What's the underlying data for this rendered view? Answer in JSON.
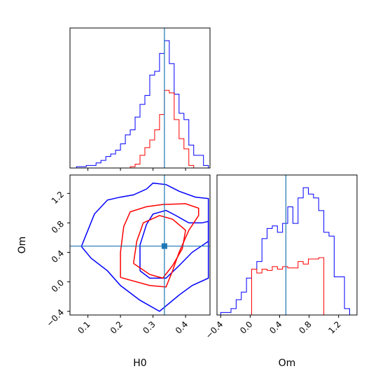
{
  "colors": {
    "series_blue": "#0000ff",
    "series_red": "#ff0000",
    "truth": "#1f77b4",
    "frame": "#000000"
  },
  "chart_data": [
    {
      "type": "histogram",
      "panel": "H0 marginal",
      "xlim": [
        0.045,
        0.475
      ],
      "ylim": [
        0,
        1.1
      ],
      "xlabel": "",
      "ylabel": "",
      "truth_x": 0.335,
      "bin_edges": [
        0.05,
        0.065,
        0.08,
        0.095,
        0.11,
        0.125,
        0.14,
        0.155,
        0.17,
        0.185,
        0.2,
        0.215,
        0.23,
        0.245,
        0.26,
        0.275,
        0.29,
        0.305,
        0.32,
        0.335,
        0.35,
        0.365,
        0.38,
        0.395,
        0.41,
        0.425,
        0.44,
        0.455,
        0.47
      ],
      "series": [
        {
          "color": "#0000ff",
          "values": [
            0.0,
            0.01,
            0.01,
            0.02,
            0.02,
            0.04,
            0.06,
            0.09,
            0.11,
            0.14,
            0.19,
            0.26,
            0.3,
            0.4,
            0.5,
            0.57,
            0.73,
            0.76,
            0.9,
            1.0,
            0.82,
            0.58,
            0.43,
            0.38,
            0.18,
            0.1,
            0.1,
            0.02
          ]
        },
        {
          "color": "#ff0000",
          "values": [
            0,
            0,
            0,
            0,
            0,
            0,
            0,
            0,
            0,
            0,
            0,
            0,
            0.01,
            0.03,
            0.1,
            0.16,
            0.22,
            0.3,
            0.42,
            0.61,
            0.59,
            0.38,
            0.23,
            0.15,
            0.02,
            0,
            0,
            0
          ]
        }
      ]
    },
    {
      "type": "contour",
      "panel": "H0 vs Om",
      "xlabel": "H0",
      "ylabel": "Om",
      "xlim": [
        0.045,
        0.475
      ],
      "ylim": [
        -0.45,
        1.45
      ],
      "xticks": [
        "0.1",
        "0.2",
        "0.3",
        "0.4"
      ],
      "yticks": [
        "−0.4",
        "0.0",
        "0.4",
        "0.8",
        "1.2"
      ],
      "truth": {
        "x": 0.335,
        "y": 0.485
      },
      "series": [
        {
          "color": "#0000ff",
          "contours": [
            [
              [
                0.08,
                0.48
              ],
              [
                0.1,
                0.7
              ],
              [
                0.12,
                0.92
              ],
              [
                0.16,
                1.11
              ],
              [
                0.2,
                1.15
              ],
              [
                0.24,
                1.18
              ],
              [
                0.28,
                1.26
              ],
              [
                0.3,
                1.34
              ],
              [
                0.34,
                1.32
              ],
              [
                0.38,
                1.23
              ],
              [
                0.43,
                1.15
              ],
              [
                0.47,
                1.13
              ],
              [
                0.47,
                0.05
              ],
              [
                0.42,
                -0.05
              ],
              [
                0.38,
                -0.18
              ],
              [
                0.32,
                -0.4
              ],
              [
                0.26,
                -0.25
              ],
              [
                0.2,
                -0.05
              ],
              [
                0.16,
                0.15
              ],
              [
                0.11,
                0.32
              ],
              [
                0.08,
                0.48
              ]
            ],
            [
              [
                0.26,
                0.15
              ],
              [
                0.26,
                0.5
              ],
              [
                0.28,
                0.78
              ],
              [
                0.3,
                0.92
              ],
              [
                0.34,
                0.97
              ],
              [
                0.37,
                0.9
              ],
              [
                0.41,
                0.8
              ],
              [
                0.45,
                0.8
              ],
              [
                0.47,
                0.82
              ],
              [
                0.47,
                0.55
              ],
              [
                0.42,
                0.4
              ],
              [
                0.38,
                0.22
              ],
              [
                0.34,
                0.05
              ],
              [
                0.29,
                0.05
              ],
              [
                0.26,
                0.15
              ]
            ]
          ]
        },
        {
          "color": "#ff0000",
          "contours": [
            [
              [
                0.2,
                0.06
              ],
              [
                0.2,
                0.4
              ],
              [
                0.21,
                0.75
              ],
              [
                0.23,
                0.95
              ],
              [
                0.28,
                1.02
              ],
              [
                0.33,
                1.05
              ],
              [
                0.4,
                1.06
              ],
              [
                0.44,
                1.0
              ],
              [
                0.44,
                0.9
              ],
              [
                0.41,
                0.7
              ],
              [
                0.38,
                0.4
              ],
              [
                0.36,
                0.15
              ],
              [
                0.34,
                -0.07
              ],
              [
                0.29,
                -0.05
              ],
              [
                0.2,
                0.06
              ]
            ],
            [
              [
                0.24,
                0.25
              ],
              [
                0.25,
                0.55
              ],
              [
                0.27,
                0.8
              ],
              [
                0.32,
                0.9
              ],
              [
                0.36,
                0.85
              ],
              [
                0.4,
                0.7
              ],
              [
                0.39,
                0.45
              ],
              [
                0.36,
                0.22
              ],
              [
                0.33,
                0.05
              ],
              [
                0.29,
                0.1
              ],
              [
                0.24,
                0.25
              ]
            ]
          ]
        }
      ]
    },
    {
      "type": "histogram",
      "panel": "Om marginal",
      "xlabel": "Om",
      "ylabel": "",
      "xlim": [
        -0.45,
        1.45
      ],
      "ylim": [
        0,
        1.1
      ],
      "xticks": [
        "−0.4",
        "0.0",
        "0.4",
        "0.8",
        "1.2"
      ],
      "truth_x": 0.485,
      "bin_edges": [
        -0.4,
        -0.33,
        -0.26,
        -0.19,
        -0.12,
        -0.05,
        0.02,
        0.09,
        0.16,
        0.23,
        0.3,
        0.37,
        0.44,
        0.51,
        0.58,
        0.65,
        0.72,
        0.79,
        0.86,
        0.93,
        1.0,
        1.07,
        1.14,
        1.21,
        1.28,
        1.35
      ],
      "series": [
        {
          "color": "#0000ff",
          "values": [
            0.02,
            0.02,
            0.05,
            0.12,
            0.18,
            0.29,
            0.36,
            0.42,
            0.6,
            0.68,
            0.7,
            0.65,
            0.72,
            0.85,
            0.72,
            0.92,
            1.0,
            0.95,
            0.92,
            0.82,
            0.65,
            0.62,
            0.3,
            0.3,
            0.05
          ]
        },
        {
          "color": "#ff0000",
          "values": [
            0,
            0,
            0,
            0,
            0,
            0,
            0.36,
            0.33,
            0.36,
            0.35,
            0.38,
            0.36,
            0.38,
            0.37,
            0.37,
            0.42,
            0.4,
            0.44,
            0.44,
            0.45,
            0,
            0,
            0,
            0,
            0
          ]
        }
      ]
    }
  ]
}
